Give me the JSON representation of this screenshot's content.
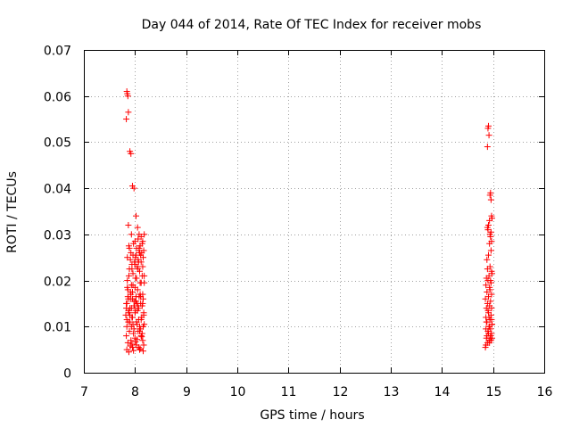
{
  "chart_data": {
    "type": "scatter",
    "title": "Day 044 of 2014, Rate Of TEC Index for receiver mobs",
    "xlabel": "GPS time / hours",
    "ylabel": "ROTI / TECUs",
    "xlim": [
      7,
      16
    ],
    "ylim": [
      0,
      0.07
    ],
    "xticks": [
      7,
      8,
      9,
      10,
      11,
      12,
      13,
      14,
      15,
      16
    ],
    "xtick_labels": [
      "7",
      "8",
      "9",
      "10",
      "11",
      "12",
      "13",
      "14",
      "15",
      "16"
    ],
    "yticks": [
      0,
      0.01,
      0.02,
      0.03,
      0.04,
      0.05,
      0.06,
      0.07
    ],
    "ytick_labels": [
      "0",
      "0.01",
      "0.02",
      "0.03",
      "0.04",
      "0.05",
      "0.06",
      "0.07"
    ],
    "grid": true,
    "marker": "plus",
    "colors": {
      "series": "#ff0000",
      "axis": "#000000",
      "grid": "#a0a0a0"
    },
    "series": [
      {
        "name": "ROTI",
        "x": [
          7.82,
          7.83,
          7.85,
          7.84,
          7.86,
          7.87,
          7.88,
          7.9,
          7.91,
          7.93,
          7.94,
          7.95,
          7.96,
          7.98,
          7.99,
          8.0,
          8.01,
          8.02,
          8.03,
          8.05,
          8.06,
          8.07,
          8.08,
          8.09,
          8.1,
          8.11,
          8.12,
          8.13,
          8.14,
          8.15,
          8.16,
          8.17,
          8.18,
          7.83,
          7.86,
          7.89,
          7.92,
          7.95,
          7.97,
          8.0,
          8.03,
          8.06,
          8.09,
          8.12,
          8.15,
          8.17,
          7.84,
          7.88,
          7.91,
          7.94,
          7.97,
          8.01,
          8.04,
          8.07,
          8.1,
          8.13,
          8.16,
          7.85,
          7.89,
          7.93,
          7.96,
          8.0,
          8.03,
          8.06,
          8.09,
          8.12,
          8.15,
          8.18,
          7.87,
          7.92,
          7.98,
          8.02,
          8.08,
          8.14,
          7.84,
          7.9,
          7.96,
          8.01,
          8.07,
          8.11,
          8.17,
          7.86,
          7.91,
          7.95,
          8.0,
          8.04,
          8.1,
          8.16,
          7.83,
          7.88,
          7.94,
          7.99,
          8.05,
          8.12,
          8.18,
          7.85,
          7.89,
          7.92,
          7.97,
          8.02,
          8.08,
          8.13,
          7.87,
          7.93,
          7.98,
          8.04,
          8.09,
          8.14,
          8.16,
          7.84,
          7.9,
          7.95,
          8.01,
          8.06,
          8.11,
          8.15,
          7.83,
          7.85,
          7.84,
          7.86,
          7.87,
          7.9,
          7.92,
          7.95,
          7.98,
          8.02,
          8.05,
          8.08,
          8.12,
          8.15,
          8.18,
          7.87,
          7.93,
          8.0,
          8.06,
          8.1,
          7.88,
          7.96,
          8.03,
          8.09,
          8.14,
          7.91,
          8.01,
          8.07,
          8.17,
          7.94,
          8.04,
          8.11,
          14.85,
          14.86,
          14.87,
          14.88,
          14.89,
          14.9,
          14.91,
          14.92,
          14.93,
          14.94,
          14.95,
          14.96,
          14.97,
          14.98,
          14.86,
          14.88,
          14.9,
          14.92,
          14.94,
          14.96,
          14.98,
          14.87,
          14.89,
          14.91,
          14.93,
          14.95,
          14.97,
          14.85,
          14.88,
          14.91,
          14.94,
          14.97,
          14.86,
          14.9,
          14.93,
          14.96,
          14.87,
          14.92,
          14.95,
          14.98,
          14.89,
          14.94,
          14.97,
          14.88,
          14.91,
          14.96,
          14.86,
          14.9,
          14.93,
          14.95,
          14.98,
          14.87,
          14.92,
          14.97,
          14.9,
          14.91,
          14.89,
          14.92,
          14.94,
          14.95,
          14.96,
          14.93,
          14.97,
          14.98,
          14.91,
          14.94,
          14.96,
          14.89,
          14.93,
          14.97,
          14.9,
          14.95
        ],
        "y": [
          0.0125,
          0.015,
          0.0185,
          0.01,
          0.0165,
          0.0135,
          0.021,
          0.011,
          0.0175,
          0.014,
          0.0225,
          0.012,
          0.019,
          0.0155,
          0.024,
          0.013,
          0.0205,
          0.0165,
          0.011,
          0.018,
          0.0225,
          0.014,
          0.0265,
          0.01,
          0.0195,
          0.015,
          0.024,
          0.012,
          0.021,
          0.017,
          0.025,
          0.013,
          0.0195,
          0.008,
          0.0065,
          0.009,
          0.007,
          0.0055,
          0.0085,
          0.0075,
          0.006,
          0.009,
          0.005,
          0.008,
          0.007,
          0.006,
          0.005,
          0.0045,
          0.0058,
          0.0062,
          0.0048,
          0.0067,
          0.0072,
          0.0055,
          0.0052,
          0.0078,
          0.0047,
          0.02,
          0.0225,
          0.019,
          0.0215,
          0.0235,
          0.0205,
          0.0245,
          0.022,
          0.0195,
          0.023,
          0.021,
          0.016,
          0.017,
          0.0145,
          0.0155,
          0.0165,
          0.0145,
          0.0115,
          0.0125,
          0.0105,
          0.0135,
          0.0115,
          0.0095,
          0.0125,
          0.018,
          0.016,
          0.0175,
          0.0185,
          0.015,
          0.017,
          0.016,
          0.014,
          0.013,
          0.012,
          0.0145,
          0.0135,
          0.0115,
          0.0105,
          0.025,
          0.027,
          0.026,
          0.028,
          0.0255,
          0.027,
          0.026,
          0.011,
          0.01,
          0.0095,
          0.0105,
          0.009,
          0.0085,
          0.01,
          0.015,
          0.014,
          0.016,
          0.0155,
          0.0145,
          0.0165,
          0.015,
          0.055,
          0.0605,
          0.061,
          0.06,
          0.0565,
          0.048,
          0.0475,
          0.0405,
          0.04,
          0.034,
          0.0315,
          0.03,
          0.0295,
          0.0285,
          0.03,
          0.032,
          0.03,
          0.0285,
          0.029,
          0.0275,
          0.0275,
          0.0255,
          0.027,
          0.026,
          0.028,
          0.0245,
          0.025,
          0.024,
          0.0265,
          0.0235,
          0.023,
          0.0255,
          0.0055,
          0.006,
          0.0075,
          0.008,
          0.0065,
          0.009,
          0.0085,
          0.007,
          0.0065,
          0.0075,
          0.008,
          0.007,
          0.0085,
          0.0075,
          0.012,
          0.011,
          0.0135,
          0.01,
          0.0115,
          0.0125,
          0.0105,
          0.014,
          0.015,
          0.013,
          0.0145,
          0.0155,
          0.014,
          0.016,
          0.0175,
          0.0165,
          0.018,
          0.017,
          0.019,
          0.02,
          0.0185,
          0.0195,
          0.0205,
          0.021,
          0.02,
          0.0215,
          0.0225,
          0.023,
          0.022,
          0.0245,
          0.0255,
          0.0265,
          0.0095,
          0.009,
          0.01,
          0.0095,
          0.0105,
          0.011,
          0.012,
          0.0115,
          0.053,
          0.0535,
          0.049,
          0.0515,
          0.0385,
          0.039,
          0.0375,
          0.033,
          0.034,
          0.0335,
          0.032,
          0.03,
          0.0305,
          0.0315,
          0.028,
          0.0285,
          0.031,
          0.0295
        ]
      }
    ]
  }
}
